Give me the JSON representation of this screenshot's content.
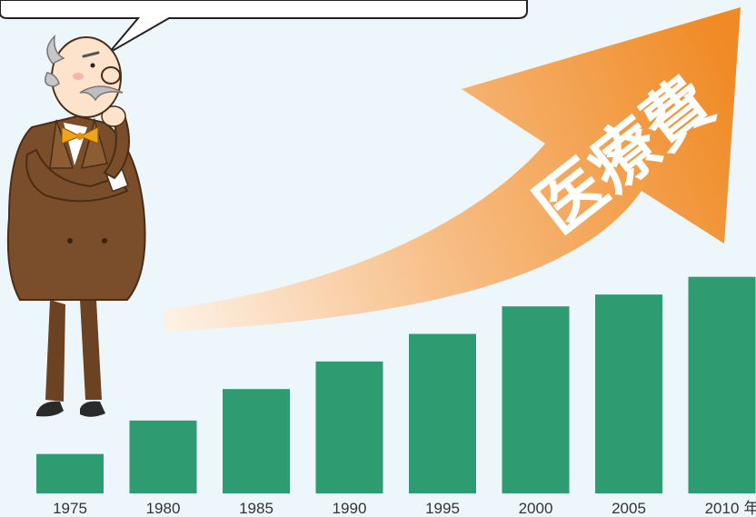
{
  "colors": {
    "background": "#edf6fb",
    "bar": "#2f9b70",
    "arrow_start": "#fde9d6",
    "arrow_end": "#f08a24",
    "suit": "#7a4e2a",
    "bowtie": "#f2a31c"
  },
  "illustration": {
    "arrow_label": "医療費",
    "character": "thinking-old-man-icon",
    "speech_bubble_text": ""
  },
  "chart_data": {
    "type": "bar",
    "categories": [
      "1975",
      "1980",
      "1985",
      "1990",
      "1995",
      "2000",
      "2005",
      "2010"
    ],
    "values": [
      1.0,
      1.85,
      2.65,
      3.35,
      4.05,
      4.75,
      5.05,
      5.5
    ],
    "ylim": [
      0,
      6.3
    ],
    "unit_suffix": "年",
    "grid": false,
    "title": "",
    "xlabel": "",
    "ylabel": ""
  }
}
